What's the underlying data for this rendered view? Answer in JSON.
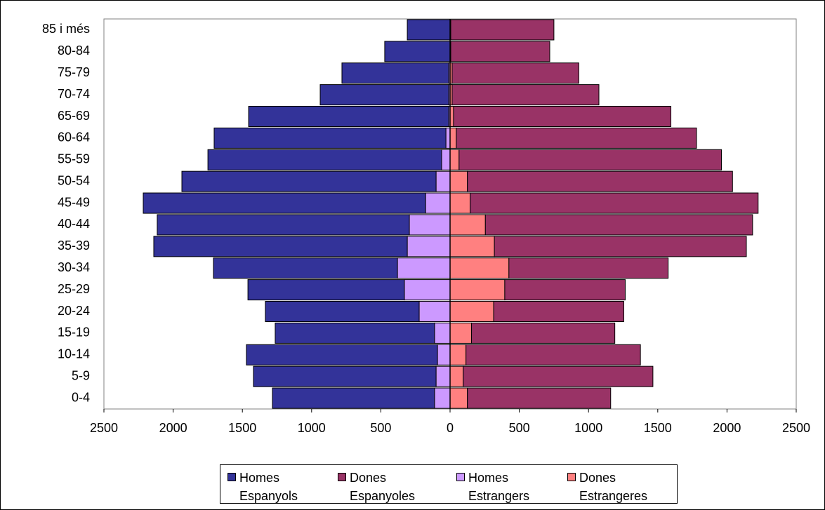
{
  "chart_data": {
    "type": "pyramid",
    "categories": [
      "0-4",
      "5-9",
      "10-14",
      "15-19",
      "20-24",
      "25-29",
      "30-34",
      "35-39",
      "40-44",
      "45-49",
      "50-54",
      "55-59",
      "60-64",
      "65-69",
      "70-74",
      "75-79",
      "80-84",
      "85 i més"
    ],
    "series": [
      {
        "name": "Homes Espanyols",
        "color": "#333399",
        "stack_on": 2,
        "values": [
          -1171,
          -1319,
          -1380,
          -1151,
          -1111,
          -1130,
          -1329,
          -1831,
          -1821,
          -2039,
          -1836,
          -1688,
          -1674,
          -1445,
          -928,
          -771,
          -472,
          -309
        ]
      },
      {
        "name": "Dones Espanyoles",
        "color": "#993366",
        "stack_on": 3,
        "values": [
          1035,
          1370,
          1260,
          1035,
          940,
          870,
          1150,
          1820,
          1930,
          2080,
          1915,
          1895,
          1735,
          1570,
          1060,
          915,
          715,
          745
        ]
      },
      {
        "name": "Homes Estrangers",
        "color": "#cc99ff",
        "values": [
          -112,
          -101,
          -91,
          -112,
          -223,
          -330,
          -380,
          -309,
          -294,
          -177,
          -101,
          -61,
          -30,
          -10,
          -10,
          -10,
          0,
          0
        ]
      },
      {
        "name": "Dones Estrangeres",
        "color": "#ff8080",
        "values": [
          125,
          95,
          115,
          155,
          315,
          395,
          425,
          320,
          255,
          145,
          125,
          65,
          45,
          25,
          15,
          15,
          5,
          5
        ]
      }
    ],
    "xlim": [
      -2500,
      2500
    ],
    "xticks": [
      {
        "value": -2500,
        "label": "2500"
      },
      {
        "value": -2000,
        "label": "2000"
      },
      {
        "value": -1500,
        "label": "1500"
      },
      {
        "value": -1000,
        "label": "1000"
      },
      {
        "value": -500,
        "label": "500"
      },
      0,
      500,
      1000,
      1500,
      2000,
      2500
    ]
  }
}
